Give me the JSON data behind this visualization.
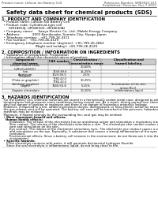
{
  "doc_number": "Reference Number: SMS3923-015",
  "established": "Established / Revision: Dec.7.2019",
  "main_title": "Safety data sheet for chemical products (SDS)",
  "product_name_top": "Product name: Lithium Ion Battery Cell",
  "section1_title": "1. PRODUCT AND COMPANY IDENTIFICATION",
  "s1_lines": [
    "  • Product name: Lithium Ion Battery Cell",
    "  • Product code: Cylindrical-type cell",
    "       (UR18650J, UR18650Z, UR18650A)",
    "  • Company name:     Sanyo Electric Co., Ltd., Mobile Energy Company",
    "  • Address:            2001 Kamikosaka, Sumoto-City, Hyogo, Japan",
    "  • Telephone number:   +81-799-26-4111",
    "  • Fax number:   +81-799-26-4129",
    "  • Emergency telephone number (daytime): +81-799-26-2862",
    "                                  (Night and holiday): +81-799-26-4129"
  ],
  "section2_title": "2. COMPOSITION / INFORMATION ON INGREDIENTS",
  "s2_intro": "  • Substance or preparation: Preparation",
  "s2_sub": "  • Information about the chemical nature of product:",
  "table_headers": [
    "Component\nchemical name",
    "CAS number",
    "Concentration /\nConcentration range",
    "Classification and\nhazard labeling"
  ],
  "table_rows": [
    [
      "Lithium cobalt oxide\n(LiMn/CoO2(O))",
      "-",
      "30-60%",
      "-"
    ],
    [
      "Iron",
      "7439-89-6",
      "15-25%",
      "-"
    ],
    [
      "Aluminum",
      "7429-90-5",
      "2-5%",
      "-"
    ],
    [
      "Graphite\n(Flake or graphite)\n(Artificial graphite)",
      "7782-42-5\n7782-42-5",
      "10-25%",
      "-"
    ],
    [
      "Copper",
      "7440-50-8",
      "5-15%",
      "Sensitization of the skin\ngroup No.2"
    ],
    [
      "Organic electrolyte",
      "-",
      "10-20%",
      "Inflammatory liquid"
    ]
  ],
  "section3_title": "3. HAZARDS IDENTIFICATION",
  "s3_para1": "  For the battery cell, chemical materials are stored in a hermetically sealed metal case, designed to withstand\n  temperatures and pressures-some conditions during normal use. As a result, during normal use, there is no\n  physical danger of ignition or explosion and there is no danger of hazardous materials leakage.",
  "s3_para2": "  However, if exposed to a fire, added mechanical shocks, decomposed, or heat-electric action by misuse,\n  the gas release vent will be operated. The battery cell case will be breached of the pressure, hazardous\n  materials may be released.",
  "s3_para3": "  Moreover, if heated strongly by the surrounding fire, soot gas may be emitted.",
  "s3_important": "  • Most important hazard and effects:",
  "s3_human": "    Human health effects:",
  "s3_inhalation": "        Inhalation: The release of the electrolyte has an anesthesia action and stimulates a respiratory tract.",
  "s3_skin": "        Skin contact: The release of the electrolyte stimulates a skin. The electrolyte skin contact causes a\n        sore and stimulation on the skin.",
  "s3_eye": "        Eye contact: The release of the electrolyte stimulates eyes. The electrolyte eye contact causes a sore\n        and stimulation on the eye. Especially, a substance that causes a strong inflammation of the eyes is\n        contained.",
  "s3_env": "        Environmental effects: Since a battery cell remains in the environment, do not throw out it into the\n        environment.",
  "s3_specific": "  • Specific hazards:",
  "s3_specific_lines": [
    "     If the electrolyte contacts with water, it will generate detrimental hydrogen fluoride.",
    "     Since the seal electrolyte is inflammatory liquid, do not bring close to fire."
  ],
  "bg_color": "#ffffff",
  "text_color": "#000000"
}
